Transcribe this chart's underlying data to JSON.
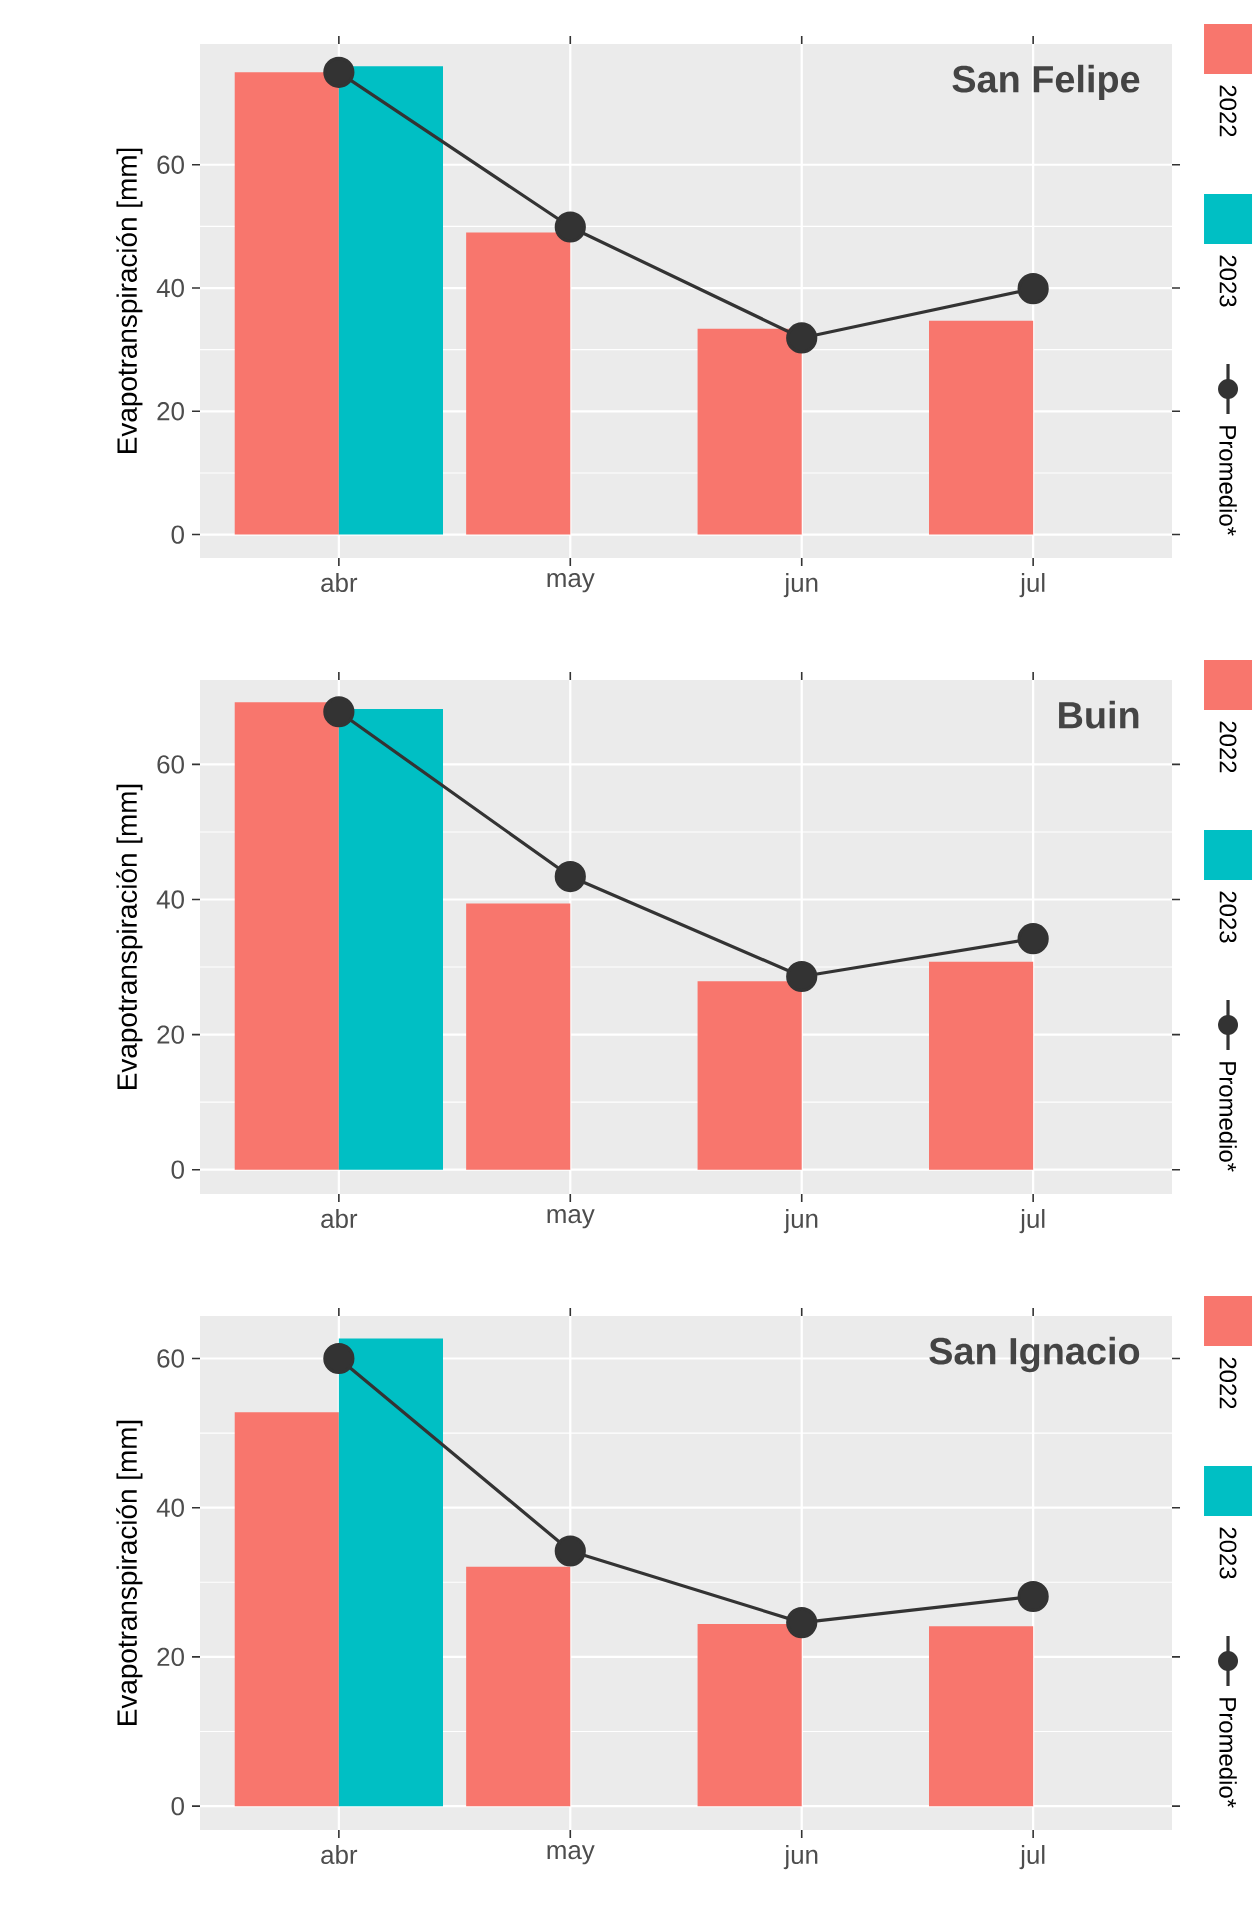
{
  "chart_data": [
    {
      "type": "bar",
      "title": "San Felipe",
      "ylabel": "Evapotranspiración [mm]",
      "categories": [
        "abr",
        "may",
        "jun",
        "jul"
      ],
      "ylim": [
        -3.8,
        79.6
      ],
      "yticks": [
        0,
        20,
        40,
        60
      ],
      "grid": true,
      "legend": "right",
      "series": [
        {
          "name": "2022",
          "color": "#f8766d",
          "values": [
            75.0,
            49.0,
            33.4,
            34.7
          ]
        },
        {
          "name": "2023",
          "color": "#00bfc4",
          "values": [
            76.0,
            null,
            null,
            null
          ]
        },
        {
          "name": "Promedio*",
          "type": "line",
          "marker": "circle",
          "color": "#333333",
          "values": [
            75.0,
            49.9,
            31.9,
            39.9
          ]
        }
      ]
    },
    {
      "type": "bar",
      "title": "Buin",
      "ylabel": "Evapotranspiración [mm]",
      "categories": [
        "abr",
        "may",
        "jun",
        "jul"
      ],
      "ylim": [
        -3.6,
        72.5
      ],
      "yticks": [
        0,
        20,
        40,
        60
      ],
      "grid": true,
      "legend": "right",
      "series": [
        {
          "name": "2022",
          "color": "#f8766d",
          "values": [
            69.2,
            39.4,
            27.9,
            30.8
          ]
        },
        {
          "name": "2023",
          "color": "#00bfc4",
          "values": [
            68.2,
            null,
            null,
            null
          ]
        },
        {
          "name": "Promedio*",
          "type": "line",
          "marker": "circle",
          "color": "#333333",
          "values": [
            67.8,
            43.4,
            28.6,
            34.2
          ]
        }
      ]
    },
    {
      "type": "bar",
      "title": "San Ignacio",
      "ylabel": "Evapotranspiración [mm]",
      "categories": [
        "abr",
        "may",
        "jun",
        "jul"
      ],
      "ylim": [
        -3.2,
        65.7
      ],
      "yticks": [
        0,
        20,
        40,
        60
      ],
      "grid": true,
      "legend": "right",
      "series": [
        {
          "name": "2022",
          "color": "#f8766d",
          "values": [
            52.8,
            32.1,
            24.4,
            24.1
          ]
        },
        {
          "name": "2023",
          "color": "#00bfc4",
          "values": [
            62.7,
            null,
            null,
            null
          ]
        },
        {
          "name": "Promedio*",
          "type": "line",
          "marker": "circle",
          "color": "#333333",
          "values": [
            60.0,
            34.2,
            24.6,
            28.1
          ]
        }
      ]
    }
  ]
}
